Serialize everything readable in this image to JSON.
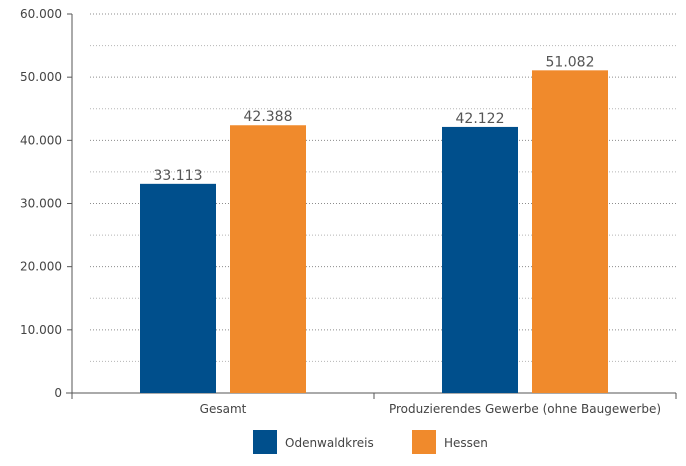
{
  "chart_data": {
    "type": "bar",
    "categories": [
      "Gesamt",
      "Produzierendes Gewerbe (ohne Baugewerbe)"
    ],
    "series": [
      {
        "name": "Odenwaldkreis",
        "values": [
          33113,
          42122
        ],
        "labels": [
          "33.113",
          "42.122"
        ],
        "color": "#004f8c"
      },
      {
        "name": "Hessen",
        "values": [
          42388,
          51082
        ],
        "labels": [
          "42.388",
          "51.082"
        ],
        "color": "#f08a2c"
      }
    ],
    "ylim": [
      0,
      60000
    ],
    "yticks": [
      0,
      10000,
      20000,
      30000,
      40000,
      50000,
      60000
    ],
    "ytick_labels": [
      "0",
      "10.000",
      "20.000",
      "30.000",
      "40.000",
      "50.000",
      "60.000"
    ],
    "grid": true,
    "legend": "bottom-center"
  }
}
